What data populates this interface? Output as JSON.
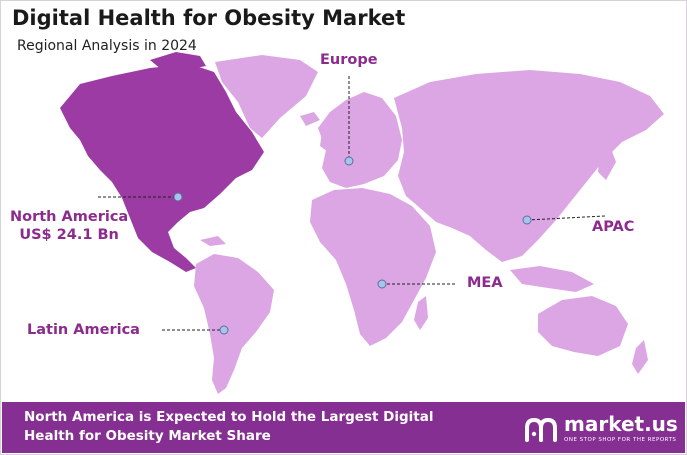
{
  "header": {
    "title": "Digital Health for Obesity Market",
    "subtitle": "Regional Analysis in 2024"
  },
  "regions": {
    "europe": "Europe",
    "north_america_name": "North America",
    "north_america_value": "US$ 24.1 Bn",
    "apac": "APAC",
    "mea": "MEA",
    "latin_america": "Latin America"
  },
  "colors": {
    "highlight_region": "#9b3ba3",
    "other_regions": "#dba6e3",
    "label_text": "#8c2b8e",
    "footer_background": "#852f92",
    "marker": "#a9c4ec"
  },
  "footer": {
    "text": "North America is Expected to Hold the Largest Digital Health for Obesity Market Share",
    "brand_name": "market.us",
    "brand_tagline": "ONE STOP SHOP FOR THE REPORTS",
    "brand_icon": "market-us-logo-icon"
  }
}
